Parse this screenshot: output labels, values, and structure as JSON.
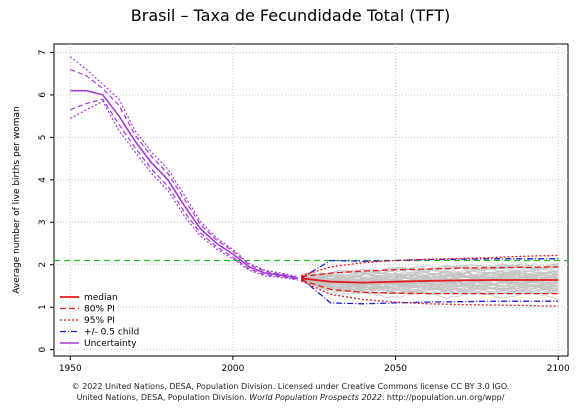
{
  "title": "Brasil – Taxa de Fecundidade Total (TFT)",
  "footer": {
    "line1": "© 2022 United Nations, DESA, Population Division. Licensed under Creative Commons license CC BY 3.0 IGO.",
    "line2a": "United Nations, DESA, Population Division. ",
    "line2b": "World Population Prospects 2022",
    "line2c": ". http://population.un.org/wpp/"
  },
  "chart_data": {
    "type": "line",
    "ylabel": "Average number of live births per woman",
    "xlabel": "",
    "xlim": [
      1945,
      2103
    ],
    "ylim": [
      -0.15,
      7.2
    ],
    "xticks": [
      1950,
      2000,
      2050,
      2100
    ],
    "yticks": [
      0,
      1,
      2,
      3,
      4,
      5,
      6,
      7
    ],
    "grid": true,
    "replacement_level": 2.1,
    "colors": {
      "median": "#e41a1c",
      "pi80": "#e41a1c",
      "pi95": "#e41a1c",
      "half_child": "#1f1fd6",
      "uncertainty": "#a23bd6",
      "trajectories": "#c4c4c4",
      "replacement": "#22c022"
    },
    "legend": {
      "position": "bottom-left",
      "entries": [
        "median",
        "80% PI",
        "95% PI",
        "+/- 0.5 child",
        "Uncertainty"
      ]
    },
    "historical": {
      "x": [
        1950,
        1955,
        1960,
        1965,
        1970,
        1975,
        1980,
        1985,
        1990,
        1995,
        2000,
        2005,
        2010,
        2015,
        2020
      ],
      "median": [
        6.1,
        6.1,
        6.0,
        5.5,
        4.9,
        4.4,
        4.0,
        3.4,
        2.85,
        2.5,
        2.25,
        1.95,
        1.8,
        1.75,
        1.68
      ],
      "upper80": [
        6.6,
        6.45,
        6.15,
        5.75,
        5.05,
        4.55,
        4.15,
        3.55,
        2.95,
        2.58,
        2.32,
        2.0,
        1.84,
        1.78,
        1.7
      ],
      "lower80": [
        5.65,
        5.8,
        5.9,
        5.3,
        4.75,
        4.25,
        3.85,
        3.25,
        2.75,
        2.42,
        2.18,
        1.9,
        1.76,
        1.72,
        1.66
      ],
      "upper95": [
        6.9,
        6.6,
        6.25,
        5.9,
        5.15,
        4.65,
        4.25,
        3.65,
        3.02,
        2.63,
        2.36,
        2.03,
        1.87,
        1.8,
        1.72
      ],
      "lower95": [
        5.45,
        5.65,
        5.85,
        5.15,
        4.65,
        4.15,
        3.75,
        3.15,
        2.68,
        2.37,
        2.14,
        1.87,
        1.73,
        1.7,
        1.64
      ]
    },
    "projection": {
      "x": [
        2021,
        2030,
        2040,
        2050,
        2060,
        2070,
        2080,
        2090,
        2100
      ],
      "median": [
        1.68,
        1.6,
        1.58,
        1.6,
        1.62,
        1.63,
        1.64,
        1.64,
        1.64
      ],
      "upper80": [
        1.72,
        1.8,
        1.85,
        1.88,
        1.9,
        1.92,
        1.93,
        1.94,
        1.95
      ],
      "lower80": [
        1.64,
        1.42,
        1.35,
        1.33,
        1.32,
        1.32,
        1.32,
        1.32,
        1.32
      ],
      "upper95": [
        1.74,
        1.95,
        2.05,
        2.1,
        2.13,
        2.15,
        2.17,
        2.2,
        2.22
      ],
      "lower95": [
        1.62,
        1.3,
        1.18,
        1.12,
        1.08,
        1.06,
        1.05,
        1.04,
        1.02
      ],
      "upper_half_child": [
        1.68,
        2.1,
        2.08,
        2.1,
        2.12,
        2.13,
        2.14,
        2.14,
        2.14
      ],
      "lower_half_child": [
        1.68,
        1.1,
        1.08,
        1.1,
        1.12,
        1.13,
        1.14,
        1.14,
        1.14
      ]
    }
  }
}
